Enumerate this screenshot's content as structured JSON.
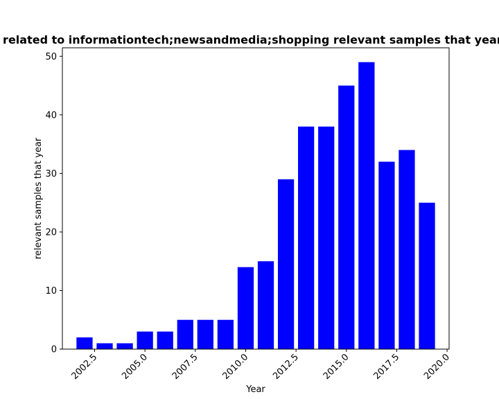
{
  "chart_data": {
    "type": "bar",
    "title": "Citations related to informationtech;newsandmedia;shopping relevant samples that year in Scholar",
    "xlabel": "Year",
    "ylabel": "relevant samples that year",
    "x": [
      2002,
      2003,
      2004,
      2005,
      2006,
      2007,
      2008,
      2009,
      2010,
      2011,
      2012,
      2013,
      2014,
      2015,
      2016,
      2017,
      2018,
      2019
    ],
    "values": [
      2,
      1,
      1,
      3,
      3,
      5,
      5,
      5,
      14,
      15,
      29,
      38,
      38,
      45,
      49,
      32,
      34,
      25
    ],
    "bar_color": "#0000ff",
    "xlim": [
      2000.9,
      2020.1
    ],
    "ylim": [
      0,
      51.45
    ],
    "xticks": [
      2002.5,
      2005.0,
      2007.5,
      2010.0,
      2012.5,
      2015.0,
      2017.5,
      2020.0
    ],
    "xtick_labels": [
      "2002.5",
      "2005.0",
      "2007.5",
      "2010.0",
      "2012.5",
      "2015.0",
      "2017.5",
      "2020.0"
    ],
    "yticks": [
      0,
      10,
      20,
      30,
      40,
      50
    ],
    "ytick_labels": [
      "0",
      "10",
      "20",
      "30",
      "40",
      "50"
    ],
    "grid": false,
    "legend": false
  }
}
